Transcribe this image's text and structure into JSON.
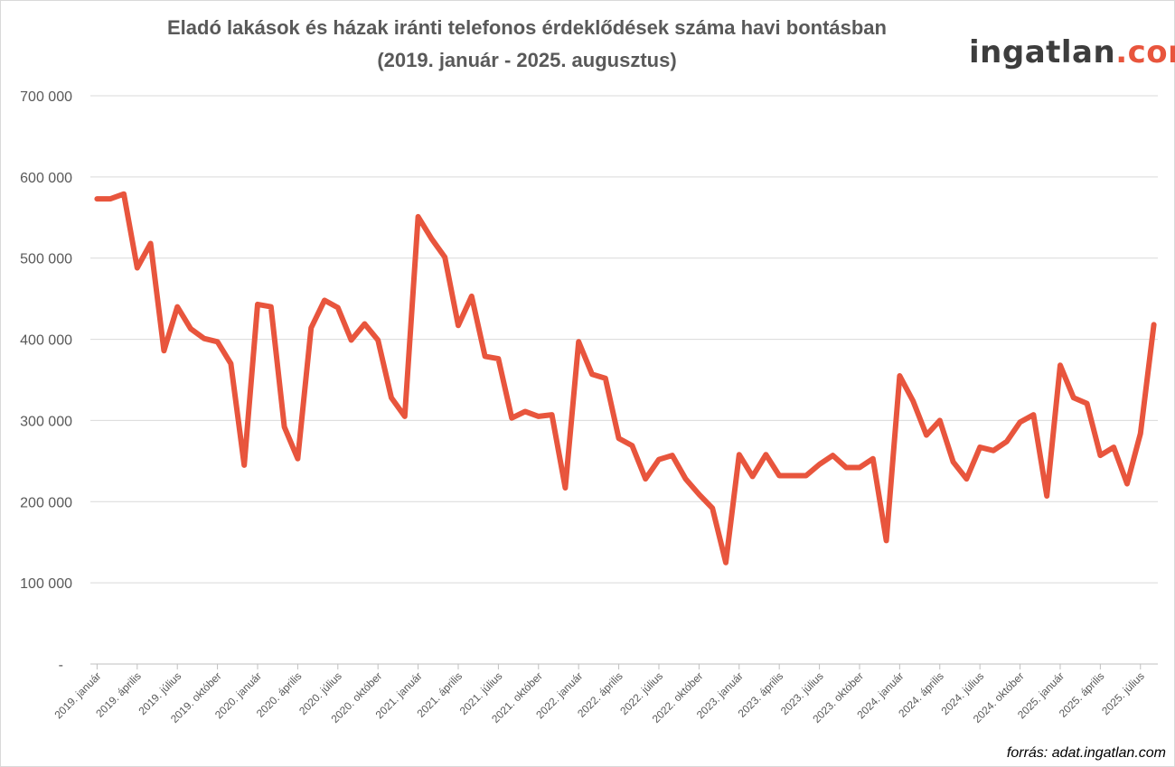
{
  "chart_data": {
    "type": "line",
    "title": "Eladó lakások és házak iránti telefonos érdeklődések száma havi bontásban",
    "subtitle": "(2019. január - 2025. augusztus)",
    "xlabel": "",
    "ylabel": "",
    "ylim": [
      0,
      700000
    ],
    "y_ticks": [
      0,
      100000,
      200000,
      300000,
      400000,
      500000,
      600000,
      700000
    ],
    "y_tick_labels": [
      "-",
      "100 000",
      "200 000",
      "300 000",
      "400 000",
      "500 000",
      "600 000",
      "700 000"
    ],
    "grid": true,
    "legend": "none",
    "x_tick_labels": [
      "2019. január",
      "2019. április",
      "2019. július",
      "2019. október",
      "2020. január",
      "2020. április",
      "2020. július",
      "2020. október",
      "2021. január",
      "2021. április",
      "2021. július",
      "2021. október",
      "2022. január",
      "2022. április",
      "2022. július",
      "2022. október",
      "2023. január",
      "2023. április",
      "2023. július",
      "2023. október",
      "2024. január",
      "2024. április",
      "2024. július",
      "2024. október",
      "2025. január",
      "2025. április",
      "2025. július"
    ],
    "x_tick_step_months": 3,
    "series": [
      {
        "color": "#e8553d",
        "start": "2019. január",
        "end": "2025. augusztus",
        "values": [
          573000,
          573000,
          579000,
          488000,
          518000,
          386000,
          440000,
          413000,
          401000,
          397000,
          370000,
          245000,
          443000,
          440000,
          292000,
          253000,
          414000,
          448000,
          439000,
          399000,
          419000,
          399000,
          328000,
          305000,
          551000,
          524000,
          501000,
          417000,
          453000,
          379000,
          376000,
          303000,
          311000,
          305000,
          307000,
          217000,
          397000,
          357000,
          352000,
          278000,
          269000,
          228000,
          252000,
          257000,
          228000,
          209000,
          192000,
          125000,
          258000,
          231000,
          258000,
          232000,
          232000,
          232000,
          246000,
          257000,
          242000,
          242000,
          253000,
          152000,
          355000,
          324000,
          282000,
          300000,
          249000,
          228000,
          267000,
          263000,
          274000,
          298000,
          307000,
          207000,
          368000,
          328000,
          321000,
          257000,
          267000,
          222000,
          284000,
          418000
        ]
      }
    ]
  },
  "source": "forrás: adat.ingatlan.com",
  "logo": {
    "text_main": "ingatlan",
    "text_accent": ".com"
  }
}
